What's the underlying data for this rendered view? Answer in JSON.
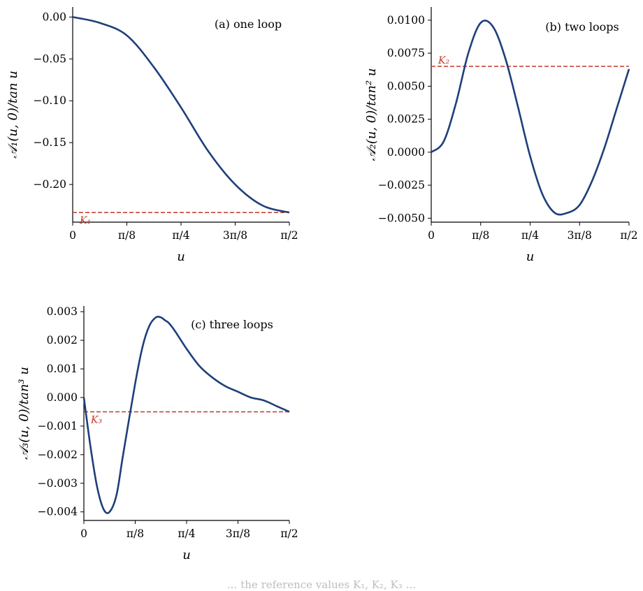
{
  "colors": {
    "curve": "#1f3f7a",
    "reference": "#c0392b",
    "axis": "#000000"
  },
  "xticks": [
    "0",
    "π/8",
    "π/4",
    "3π/8",
    "π/2"
  ],
  "caption": "… the reference values K₁, K₂, K₃ …",
  "chart_data": [
    {
      "type": "line",
      "title": "(a) one loop",
      "xlabel": "u",
      "ylabel": "𝒜₁(u, 0)/tan u",
      "xlim": [
        0,
        1.5708
      ],
      "ylim": [
        -0.245,
        0.012
      ],
      "yticks": [
        "0.00",
        "−0.05",
        "−0.10",
        "−0.15",
        "−0.20"
      ],
      "ytick_values": [
        0,
        -0.05,
        -0.1,
        -0.15,
        -0.2
      ],
      "reference": {
        "label": "K₁",
        "value": -0.2335
      },
      "series": [
        {
          "x": [
            0,
            0.1963,
            0.3927,
            0.589,
            0.7854,
            0.9817,
            1.1781,
            1.3744,
            1.5708
          ],
          "y": [
            0,
            -0.007,
            -0.022,
            -0.06,
            -0.108,
            -0.16,
            -0.2,
            -0.225,
            -0.2335
          ]
        }
      ]
    },
    {
      "type": "line",
      "title": "(b) two loops",
      "xlabel": "u",
      "ylabel": "𝒜₂(u, 0)/tan² u",
      "xlim": [
        0,
        1.5708
      ],
      "ylim": [
        -0.0053,
        0.011
      ],
      "yticks": [
        "0.0100",
        "0.0075",
        "0.0050",
        "0.0025",
        "0.0000",
        "−0.0025",
        "−0.0050"
      ],
      "ytick_values": [
        0.01,
        0.0075,
        0.005,
        0.0025,
        0,
        -0.0025,
        -0.005
      ],
      "reference": {
        "label": "K₂",
        "value": 0.0065
      },
      "series": [
        {
          "x": [
            0,
            0.0982,
            0.1963,
            0.2945,
            0.3927,
            0.4909,
            0.589,
            0.6872,
            0.7854,
            0.8836,
            0.9817,
            1.0799,
            1.1781,
            1.2763,
            1.3744,
            1.4726,
            1.5708
          ],
          "y": [
            0,
            0.0008,
            0.0037,
            0.0075,
            0.0098,
            0.0095,
            0.0071,
            0.0035,
            -0.0003,
            -0.0032,
            -0.0046,
            -0.0046,
            -0.004,
            -0.0022,
            0.0003,
            0.0033,
            0.0063
          ]
        }
      ]
    },
    {
      "type": "line",
      "title": "(c) three loops",
      "xlabel": "u",
      "ylabel": "𝒜₃(u, 0)/tan³ u",
      "xlim": [
        0,
        1.5708
      ],
      "ylim": [
        -0.0043,
        0.0032
      ],
      "yticks": [
        "0.003",
        "0.002",
        "0.001",
        "0.000",
        "−0.001",
        "−0.002",
        "−0.003",
        "−0.004"
      ],
      "ytick_values": [
        0.003,
        0.002,
        0.001,
        0,
        -0.001,
        -0.002,
        -0.003,
        -0.004
      ],
      "reference": {
        "label": "K₃",
        "value": -0.0005
      },
      "series": [
        {
          "x": [
            0,
            0.05,
            0.1,
            0.15,
            0.1963,
            0.25,
            0.3,
            0.3927,
            0.45,
            0.5,
            0.55,
            0.589,
            0.62,
            0.65,
            0.7,
            0.7854,
            0.8836,
            0.9817,
            1.0799,
            1.1781,
            1.2763,
            1.3744,
            1.4726,
            1.5708
          ],
          "y": [
            0,
            -0.0017,
            -0.0031,
            -0.0039,
            -0.004,
            -0.0034,
            -0.002,
            0.0005,
            0.0018,
            0.0025,
            0.0028,
            0.0028,
            0.0027,
            0.0026,
            0.0023,
            0.0017,
            0.0011,
            0.0007,
            0.0004,
            0.0002,
            0,
            -0.0001,
            -0.0003,
            -0.0005
          ]
        }
      ]
    }
  ]
}
